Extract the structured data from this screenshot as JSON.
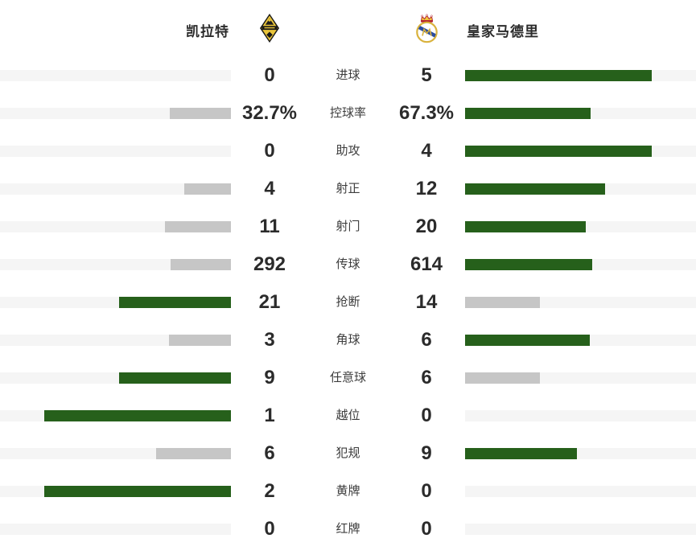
{
  "header": {
    "home_team": {
      "name": "凯拉特",
      "badge_icon": "kairat-badge-icon"
    },
    "away_team": {
      "name": "皇家马德里",
      "badge_icon": "real-madrid-badge-icon"
    }
  },
  "colors": {
    "win_bar": "#26601b",
    "lose_bar": "#c6c6c6",
    "bar_track": "#f5f5f5",
    "value_text": "#2b2b2b",
    "label_text": "#3d3d3d"
  },
  "chart_data": {
    "type": "bar",
    "orientation": "horizontal-mirrored",
    "legend": [
      "凯拉特",
      "皇家马德里"
    ],
    "categories": [
      "进球",
      "控球率",
      "助攻",
      "射正",
      "射门",
      "传球",
      "抢断",
      "角球",
      "任意球",
      "越位",
      "犯规",
      "黄牌",
      "红牌"
    ],
    "series": [
      {
        "name": "凯拉特",
        "values": [
          0,
          32.7,
          0,
          4,
          11,
          292,
          21,
          3,
          9,
          1,
          6,
          2,
          0
        ]
      },
      {
        "name": "皇家马德里",
        "values": [
          5,
          67.3,
          4,
          12,
          20,
          614,
          14,
          6,
          6,
          0,
          9,
          0,
          0
        ]
      }
    ],
    "max_fill_ratio": 0.81,
    "bar_rule": "bar width = value / (home+away) * max_fill_ratio of track; higher side colored green, lower side gray, zero = empty",
    "rows": [
      {
        "label": "进球",
        "home": "0",
        "away": "5"
      },
      {
        "label": "控球率",
        "home": "32.7%",
        "away": "67.3%"
      },
      {
        "label": "助攻",
        "home": "0",
        "away": "4"
      },
      {
        "label": "射正",
        "home": "4",
        "away": "12"
      },
      {
        "label": "射门",
        "home": "11",
        "away": "20"
      },
      {
        "label": "传球",
        "home": "292",
        "away": "614"
      },
      {
        "label": "抢断",
        "home": "21",
        "away": "14"
      },
      {
        "label": "角球",
        "home": "3",
        "away": "6"
      },
      {
        "label": "任意球",
        "home": "9",
        "away": "6"
      },
      {
        "label": "越位",
        "home": "1",
        "away": "0"
      },
      {
        "label": "犯规",
        "home": "6",
        "away": "9"
      },
      {
        "label": "黄牌",
        "home": "2",
        "away": "0"
      },
      {
        "label": "红牌",
        "home": "0",
        "away": "0"
      }
    ]
  }
}
